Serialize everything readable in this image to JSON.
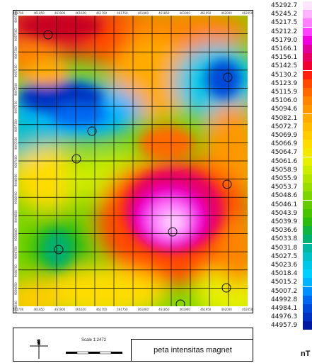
{
  "map": {
    "title": "peta intensitas magnet",
    "scale_label": "Scale 1:2472",
    "north_label": "N",
    "unit": "nT",
    "x_ticks": [
      "461700",
      "461850",
      "461900",
      "461650",
      "461700",
      "461750",
      "461800",
      "461850",
      "461900",
      "461950",
      "462000",
      "462050"
    ],
    "y_ticks": [
      "9097400",
      "9097350",
      "9097300",
      "9097250",
      "9097200",
      "9097150",
      "9097100",
      "9097050",
      "9097000",
      "9096950",
      "9096900",
      "9096850",
      "9096800",
      "9096750",
      "9096700",
      "9096650",
      "9096600"
    ],
    "grid": true,
    "color_scale": "magnetic intensity, blue = low, magenta/white = high"
  },
  "legend": {
    "values": [
      "45292.7",
      "45245.2",
      "45217.5",
      "45212.2",
      "45179.0",
      "45166.1",
      "45156.1",
      "45142.5",
      "45130.2",
      "45123.9",
      "45115.9",
      "45106.0",
      "45094.6",
      "45082.1",
      "45072.7",
      "45069.9",
      "45066.9",
      "45064.7",
      "45061.6",
      "45058.9",
      "45055.9",
      "45053.7",
      "45048.6",
      "45046.1",
      "45043.9",
      "45039.9",
      "45036.6",
      "45033.8",
      "45031.8",
      "45027.5",
      "45023.6",
      "45018.4",
      "45015.2",
      "45007.2",
      "44992.8",
      "44984.1",
      "44976.3",
      "44957.9"
    ],
    "colors": [
      "#ffe6ff",
      "#ffb3ff",
      "#ff80ff",
      "#ff40ff",
      "#f000e0",
      "#e0009a",
      "#e60060",
      "#f00030",
      "#ff2010",
      "#ff4a00",
      "#ff6a00",
      "#ff8400",
      "#ff9800",
      "#ffab00",
      "#ffbc00",
      "#ffcc00",
      "#ffdc00",
      "#f5e800",
      "#e6f000",
      "#ccec00",
      "#b2e400",
      "#98dc00",
      "#7ed400",
      "#64cc00",
      "#48c400",
      "#2cbc10",
      "#10b440",
      "#00b070",
      "#00b8a0",
      "#00c0c8",
      "#00c8e8",
      "#00d0ff",
      "#00b4ff",
      "#0090ff",
      "#0068f0",
      "#0048d8",
      "#0030c0",
      "#0018a0"
    ]
  }
}
